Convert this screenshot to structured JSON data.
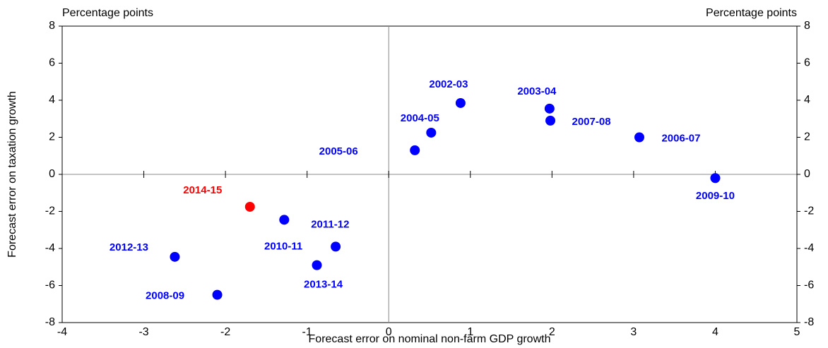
{
  "chart_data": {
    "type": "scatter",
    "x_label": "Forecast error on nominal non-farm GDP growth",
    "y_label": "Forecast error on taxation growth",
    "y_unit": "Percentage points",
    "y2_unit": "Percentage points",
    "xlim": [
      -4,
      5
    ],
    "xticks": [
      -4,
      -3,
      -2,
      -1,
      0,
      1,
      2,
      3,
      4,
      5
    ],
    "ylim": [
      -8,
      8
    ],
    "yticks": [
      -8,
      -6,
      -4,
      -2,
      0,
      2,
      4,
      6,
      8
    ],
    "y2lim": [
      -8,
      8
    ],
    "y2ticks": [
      -8,
      -6,
      -4,
      -2,
      0,
      2,
      4,
      6,
      8
    ],
    "zero_lines": true,
    "points": [
      {
        "label": "2002-03",
        "x": 0.88,
        "y": 3.85,
        "color": "#0000ff"
      },
      {
        "label": "2003-04",
        "x": 1.97,
        "y": 3.55,
        "color": "#0000ff"
      },
      {
        "label": "2007-08",
        "x": 1.98,
        "y": 2.9,
        "color": "#0000ff"
      },
      {
        "label": "2006-07",
        "x": 3.07,
        "y": 2.0,
        "color": "#0000ff"
      },
      {
        "label": "2004-05",
        "x": 0.52,
        "y": 2.25,
        "color": "#0000ff"
      },
      {
        "label": "2005-06",
        "x": 0.32,
        "y": 1.3,
        "color": "#0000ff"
      },
      {
        "label": "2009-10",
        "x": 4.0,
        "y": -0.2,
        "color": "#0000ff"
      },
      {
        "label": "2014-15",
        "x": -1.7,
        "y": -1.75,
        "color": "#ff0000"
      },
      {
        "label": "2011-12",
        "x": -1.28,
        "y": -2.45,
        "color": "#0000ff"
      },
      {
        "label": "2010-11",
        "x": -0.65,
        "y": -3.9,
        "color": "#0000ff"
      },
      {
        "label": "2013-14",
        "x": -0.88,
        "y": -4.9,
        "color": "#0000ff"
      },
      {
        "label": "2012-13",
        "x": -2.62,
        "y": -4.45,
        "color": "#0000ff"
      },
      {
        "label": "2008-09",
        "x": -2.1,
        "y": -6.5,
        "color": "#0000ff"
      }
    ]
  }
}
